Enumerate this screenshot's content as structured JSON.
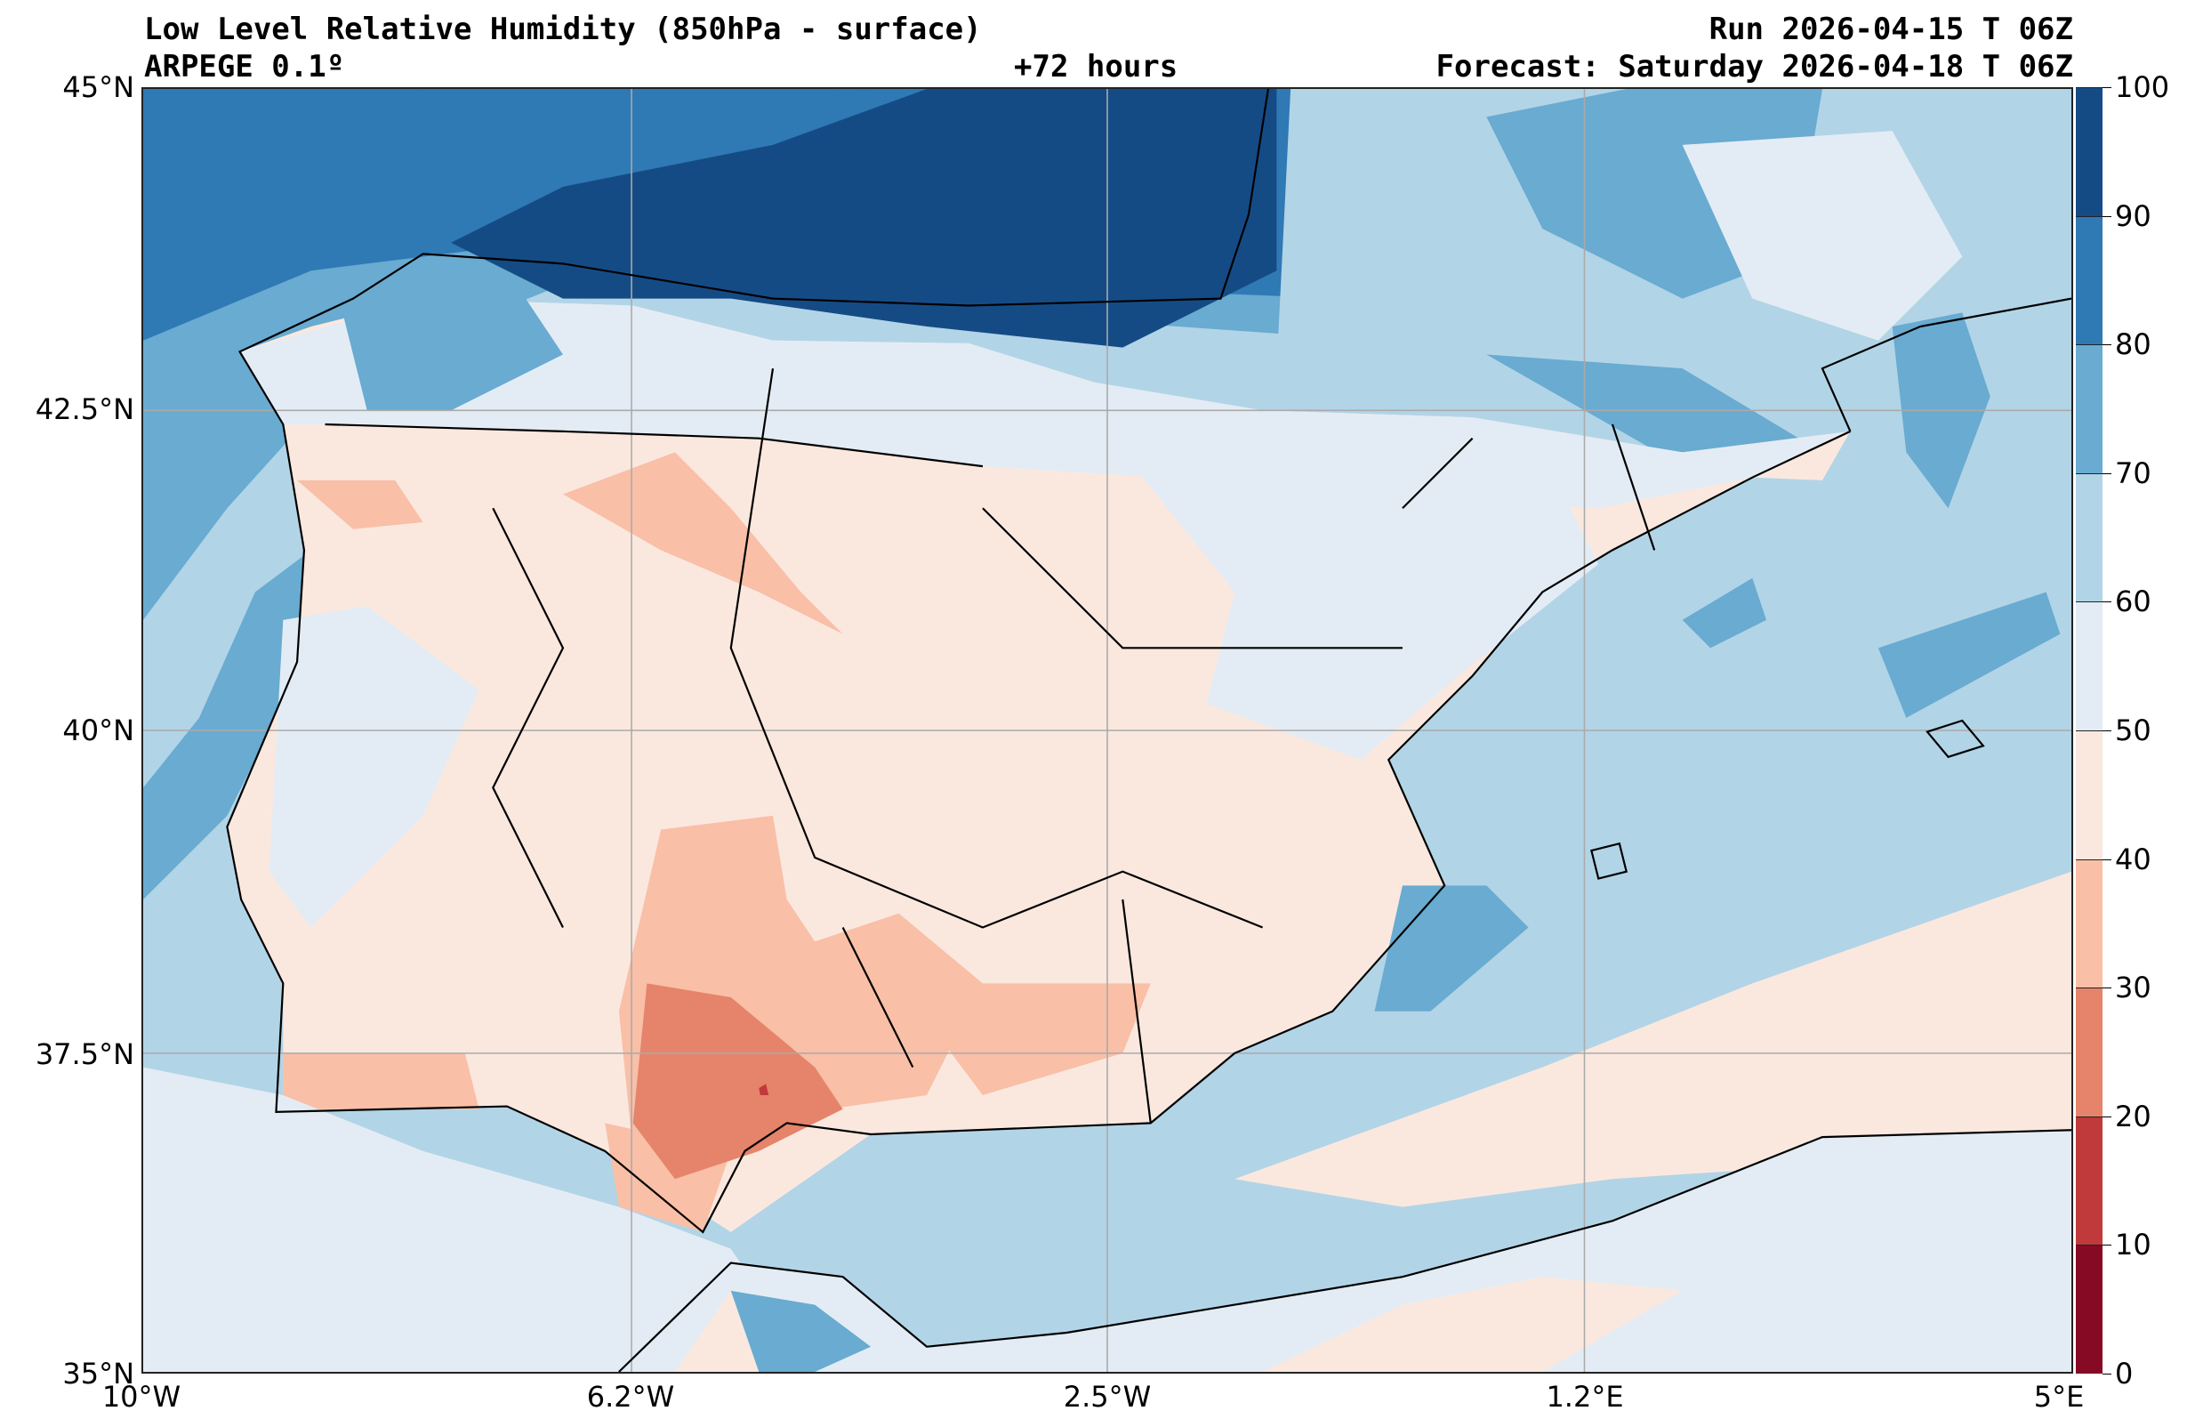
{
  "header": {
    "title": "Low Level Relative Humidity (850hPa - surface)",
    "model": "ARPEGE 0.1º",
    "lead_time": "+72 hours",
    "run": "Run 2026-04-15 T 06Z",
    "forecast": "Forecast: Saturday 2026-04-18 T 06Z"
  },
  "axes": {
    "x_ticks": [
      "10°W",
      "6.2°W",
      "2.5°W",
      "1.2°E",
      "5°E"
    ],
    "y_ticks": [
      "45°N",
      "42.5°N",
      "40°N",
      "37.5°N",
      "35°N"
    ]
  },
  "colorbar": {
    "labels": [
      "100",
      "90",
      "80",
      "70",
      "60",
      "50",
      "40",
      "30",
      "20",
      "10",
      "0"
    ],
    "colors": [
      "#154b85",
      "#2f79b5",
      "#69abd1",
      "#b2d4e7",
      "#e3ecf4",
      "#fae8df",
      "#f9bfa7",
      "#e5846a",
      "#c0393b",
      "#870a24"
    ]
  }
}
